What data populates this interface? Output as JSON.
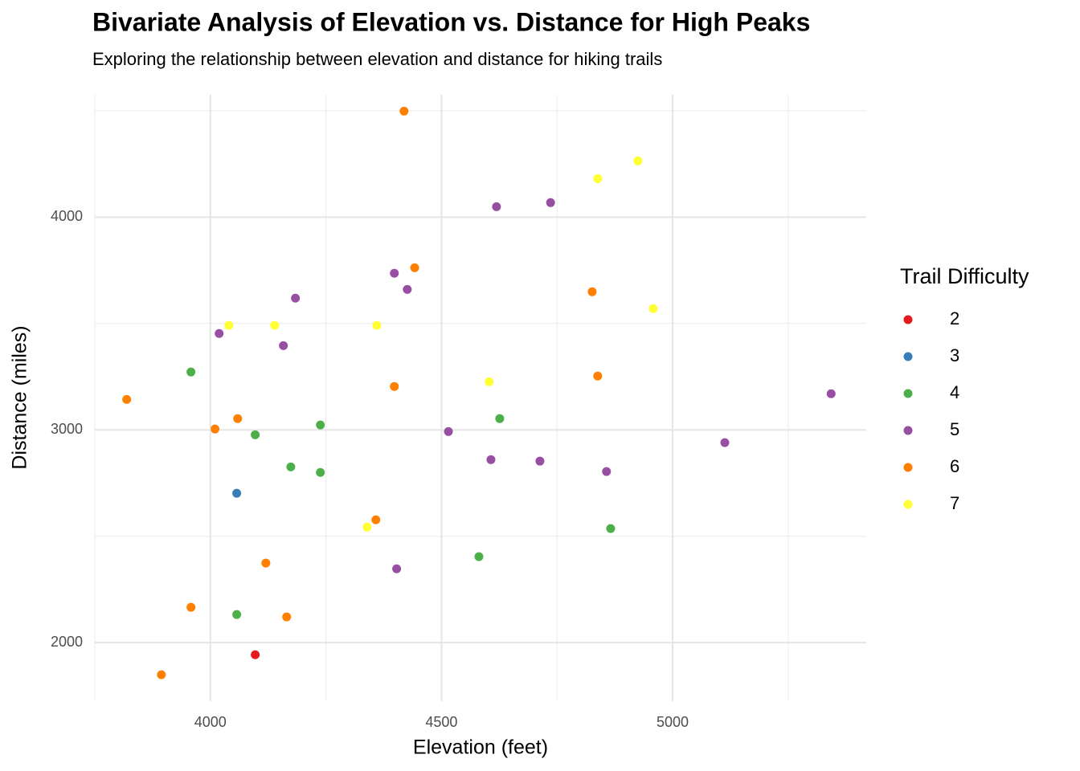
{
  "chart_data": {
    "type": "scatter",
    "title": "Bivariate Analysis of Elevation vs. Distance for High Peaks",
    "subtitle": "Exploring the relationship between elevation and distance for hiking trails",
    "x_label": "Elevation (feet)",
    "y_label": "Distance (miles)",
    "legend_title": "Trail Difficulty",
    "legend": "right",
    "grid": true,
    "xlim": [
      3750,
      5419
    ],
    "ylim": [
      1725,
      4575
    ],
    "xticks": [
      4000,
      4500,
      5000
    ],
    "yticks": [
      2000,
      3000,
      4000
    ],
    "x_minor_grid": [
      3750,
      4250,
      4750,
      5250
    ],
    "y_minor_grid": [
      2500,
      3500,
      4500
    ],
    "series": [
      {
        "name": "2",
        "color": "#e41a1c",
        "x": [
          4097
        ],
        "values": [
          1943
        ]
      },
      {
        "name": "3",
        "color": "#377eb8",
        "x": [
          4057
        ],
        "values": [
          2702
        ]
      },
      {
        "name": "4",
        "color": "#4daf4a",
        "x": [
          3958,
          4097,
          4238,
          4174,
          4238,
          4626,
          4057,
          4581,
          4866
        ],
        "values": [
          3272,
          2977,
          3023,
          2826,
          2800,
          3053,
          2132,
          2404,
          2536
        ]
      },
      {
        "name": "5",
        "color": "#984ea3",
        "x": [
          4619,
          4736,
          4398,
          4426,
          4184,
          4019,
          4158,
          4515,
          4607,
          4713,
          4857,
          5113,
          5343,
          4403
        ],
        "values": [
          4049,
          4068,
          3736,
          3660,
          3619,
          3453,
          3396,
          2992,
          2860,
          2853,
          2804,
          2940,
          3170,
          2347
        ]
      },
      {
        "name": "6",
        "color": "#ff7f00",
        "x": [
          4419,
          4442,
          4826,
          4838,
          4398,
          3819,
          4059,
          4010,
          4358,
          4120,
          3958,
          4165,
          3894
        ],
        "values": [
          4498,
          3762,
          3649,
          3253,
          3204,
          3143,
          3053,
          3004,
          2577,
          2374,
          2166,
          2121,
          1849
        ]
      },
      {
        "name": "7",
        "color": "#ffff33",
        "x": [
          4925,
          4838,
          4958,
          4040,
          4139,
          4360,
          4603,
          4339
        ],
        "values": [
          4264,
          4181,
          3570,
          3491,
          3491,
          3491,
          3226,
          2543
        ]
      }
    ]
  }
}
